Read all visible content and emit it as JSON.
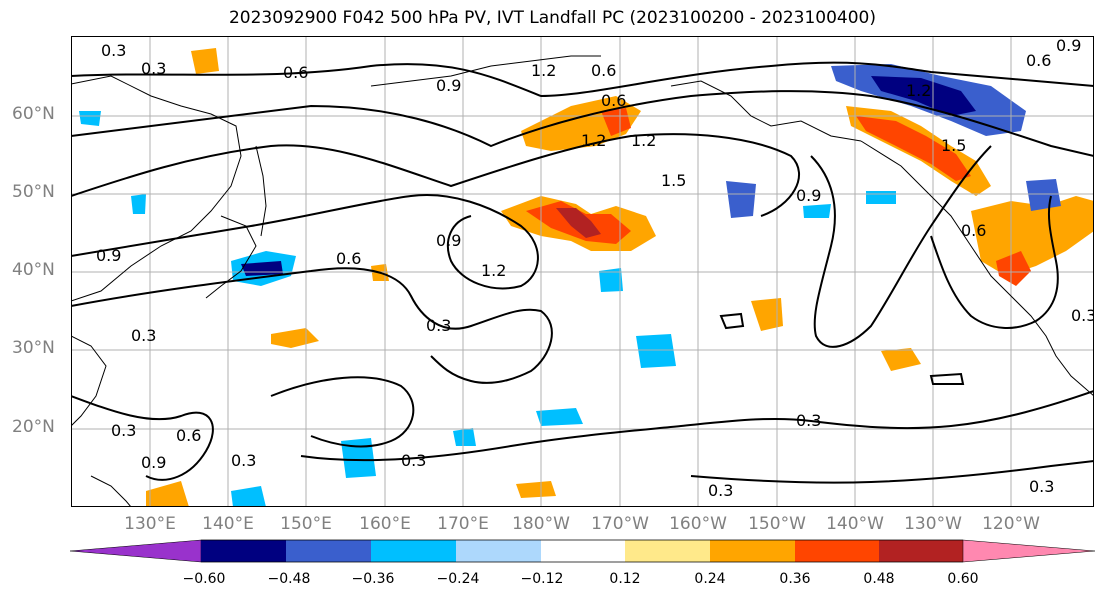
{
  "title": "2023092900 F042 500 hPa PV, IVT Landfall PC (2023100200 - 2023100400)",
  "map": {
    "lat_labels": [
      "60°N",
      "50°N",
      "40°N",
      "30°N",
      "20°N"
    ],
    "lon_labels": [
      "130°E",
      "140°E",
      "150°E",
      "160°E",
      "170°E",
      "180°W",
      "170°W",
      "160°W",
      "150°W",
      "140°W",
      "130°W",
      "120°W"
    ],
    "contour_labels": [
      "0.3",
      "0.3",
      "0.6",
      "0.9",
      "1.2",
      "0.6",
      "0.6",
      "1.2",
      "1.5",
      "0.9",
      "0.6",
      "1.2",
      "0.3",
      "0.9",
      "0.3",
      "0.6",
      "0.9",
      "0.6",
      "0.9",
      "0.3",
      "0.3",
      "0.3",
      "0.3",
      "0.3",
      "0.3",
      "1.2",
      "1.5",
      "0.9",
      "1.2",
      "0.6",
      "0.3"
    ],
    "fill_colors": {
      "lt_-0.60": "#9932cc",
      "-0.60_-0.48": "#000080",
      "-0.48_-0.36": "#3a5fcd",
      "-0.36_-0.24": "#00bfff",
      "-0.24_-0.12": "#add8fc",
      "-0.12_0.12": "#ffffff",
      "0.12_0.24": "#ffe98a",
      "0.24_0.36": "#ffa500",
      "0.36_0.48": "#ff4500",
      "0.48_0.60": "#b22222",
      "gt_0.60": "#ff88b0"
    }
  },
  "colorbar": {
    "ticks": [
      "−0.60",
      "−0.48",
      "−0.36",
      "−0.24",
      "−0.12",
      "0.12",
      "0.24",
      "0.36",
      "0.48",
      "0.60"
    ],
    "colors": [
      "#9932cc",
      "#000080",
      "#3a5fcd",
      "#00bfff",
      "#add8fc",
      "#ffffff",
      "#ffe98a",
      "#ffa500",
      "#ff4500",
      "#b22222",
      "#ff88b0"
    ]
  }
}
